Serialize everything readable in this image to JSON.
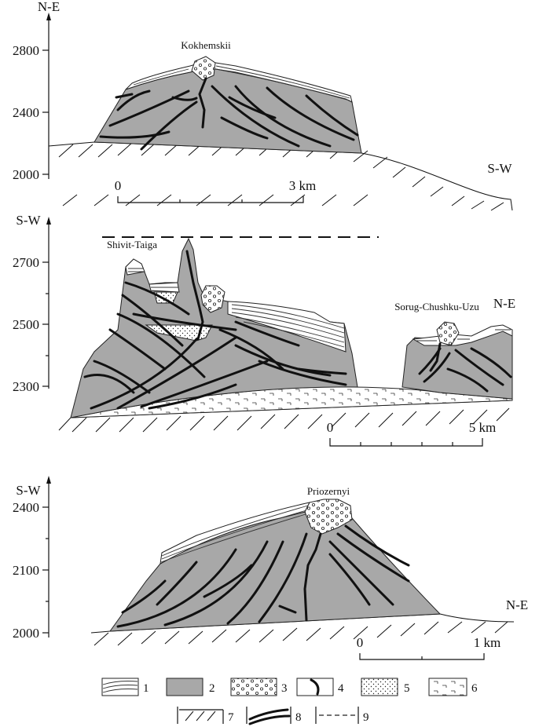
{
  "panel1": {
    "dir_left": "N-E",
    "dir_right": "S-W",
    "ticks": [
      "2800",
      "2400",
      "2000"
    ],
    "peak": "Kokhemskii",
    "scale_start": "0",
    "scale_end": "3 km"
  },
  "panel2": {
    "dir_left": "S-W",
    "dir_right": "N-E",
    "ticks": [
      "2700",
      "2500",
      "2300"
    ],
    "peak1": "Shivit-Taiga",
    "peak2": "Sorug-Chushku-Uzu",
    "scale_start": "0",
    "scale_end": "5 km"
  },
  "panel3": {
    "dir_left": "S-W",
    "dir_right": "N-E",
    "ticks": [
      "2400",
      "2100",
      "2000"
    ],
    "peak": "Priozernyi",
    "scale_start": "0",
    "scale_end": "1 km"
  },
  "legend": [
    {
      "num": "1",
      "icon": "layered-lines"
    },
    {
      "num": "2",
      "icon": "gray-fill"
    },
    {
      "num": "3",
      "icon": "circles"
    },
    {
      "num": "4",
      "icon": "curved-line"
    },
    {
      "num": "5",
      "icon": "dots"
    },
    {
      "num": "6",
      "icon": "dash-hatch"
    },
    {
      "num": "7",
      "icon": "diagonal-hatch"
    },
    {
      "num": "8",
      "icon": "bold-curves"
    },
    {
      "num": "9",
      "icon": "dashed-line"
    }
  ]
}
